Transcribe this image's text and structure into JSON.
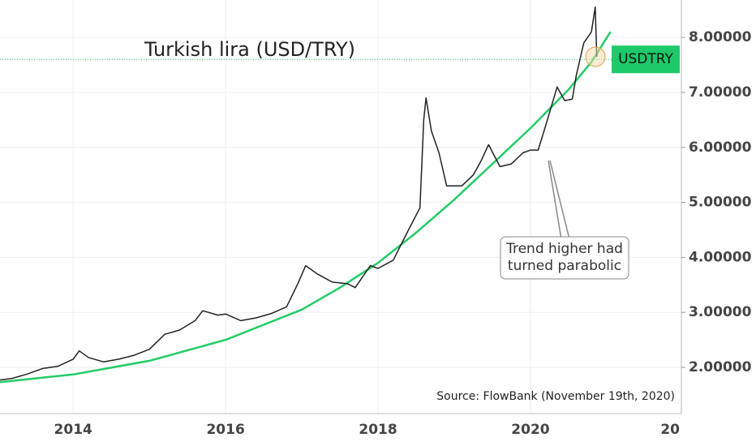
{
  "chart_data": {
    "type": "line",
    "title": "Turkish lira (USD/TRY)",
    "symbol": "USDTRY",
    "source": "Source: FlowBank (November 19th, 2020)",
    "annotation": [
      "Trend higher had",
      "turned parabolic"
    ],
    "color": "#222222",
    "x": [
      2013.04,
      2013.2,
      2013.4,
      2013.6,
      2013.8,
      2014.0,
      2014.08,
      2014.2,
      2014.4,
      2014.6,
      2014.8,
      2015.0,
      2015.2,
      2015.4,
      2015.6,
      2015.7,
      2015.9,
      2016.0,
      2016.2,
      2016.4,
      2016.6,
      2016.8,
      2016.95,
      2017.05,
      2017.2,
      2017.4,
      2017.6,
      2017.7,
      2017.9,
      2018.0,
      2018.2,
      2018.4,
      2018.55,
      2018.6,
      2018.63,
      2018.7,
      2018.8,
      2018.9,
      2019.0,
      2019.1,
      2019.25,
      2019.35,
      2019.45,
      2019.6,
      2019.75,
      2019.9,
      2020.0,
      2020.1,
      2020.2,
      2020.35,
      2020.45,
      2020.55,
      2020.6,
      2020.7,
      2020.8,
      2020.85,
      2020.87
    ],
    "values": [
      1.77,
      1.8,
      1.88,
      1.98,
      2.02,
      2.15,
      2.3,
      2.18,
      2.1,
      2.15,
      2.22,
      2.33,
      2.6,
      2.68,
      2.85,
      3.03,
      2.95,
      2.97,
      2.85,
      2.9,
      2.98,
      3.1,
      3.53,
      3.85,
      3.7,
      3.55,
      3.52,
      3.45,
      3.85,
      3.8,
      3.95,
      4.5,
      4.9,
      6.5,
      6.9,
      6.3,
      5.9,
      5.3,
      5.3,
      5.3,
      5.5,
      5.75,
      6.05,
      5.65,
      5.7,
      5.9,
      5.95,
      5.95,
      6.4,
      7.1,
      6.85,
      6.88,
      7.3,
      7.9,
      8.1,
      8.55,
      7.65
    ],
    "trend": {
      "color": "#22cc66",
      "x": [
        2013.04,
        2014,
        2015,
        2016,
        2017,
        2017.5,
        2018,
        2018.5,
        2019,
        2019.5,
        2020,
        2020.5,
        2020.8,
        2021.05
      ],
      "values": [
        1.73,
        1.87,
        2.12,
        2.5,
        3.05,
        3.45,
        3.9,
        4.45,
        5.05,
        5.7,
        6.35,
        7.05,
        7.55,
        8.1
      ]
    },
    "last_price": 7.6,
    "label_color": "#1ec96a",
    "xlim": [
      2013.04,
      2021.98
    ],
    "xticks": [
      2014,
      2016,
      2018,
      2020,
      {
        "value": 2022,
        "label": "20"
      }
    ],
    "ylim": [
      1.16,
      8.68
    ],
    "yticks": [
      {
        "value": 2,
        "label": "2.00000"
      },
      {
        "value": 3,
        "label": "3.00000"
      },
      {
        "value": 4,
        "label": "4.00000"
      },
      {
        "value": 5,
        "label": "5.00000"
      },
      {
        "value": 6,
        "label": "6.00000"
      },
      {
        "value": 7,
        "label": "7.00000"
      },
      {
        "value": 8,
        "label": "8.00000"
      }
    ],
    "grid": true
  }
}
